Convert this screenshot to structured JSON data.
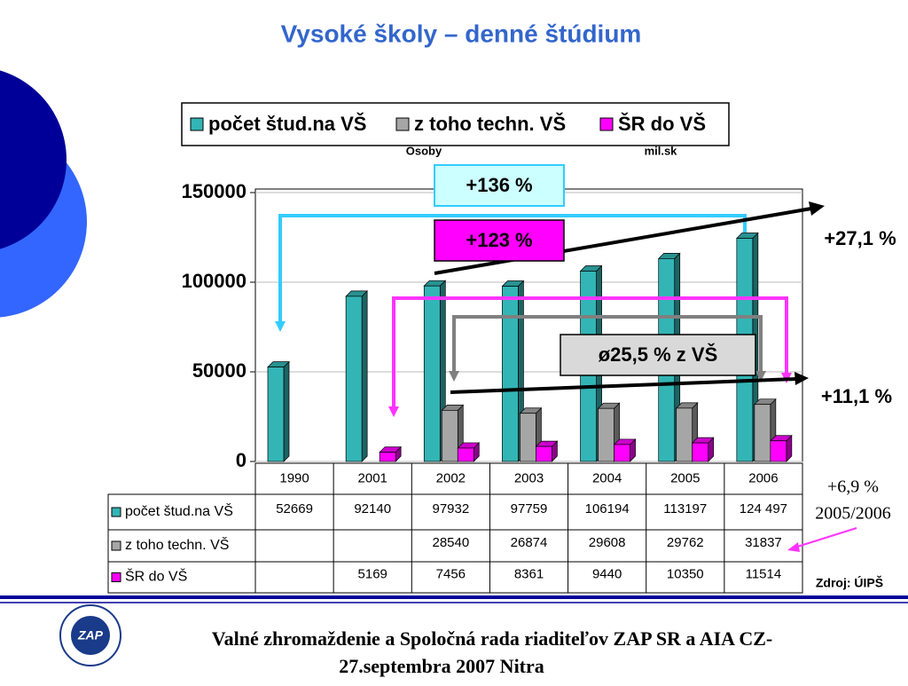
{
  "chart_data": {
    "type": "bar",
    "title": "Vysoké školy – denné štúdium",
    "categories": [
      "1990",
      "2001",
      "2002",
      "2003",
      "2004",
      "2005",
      "2006"
    ],
    "series": [
      {
        "name": "počet štud.na VŠ",
        "color": "#33b5b5",
        "values": [
          52669,
          92140,
          97932,
          97759,
          106194,
          113197,
          124497
        ],
        "value_labels": [
          "52669",
          "92140",
          "97932",
          "97759",
          "106194",
          "113197",
          "124 497"
        ]
      },
      {
        "name": "z toho techn. VŠ",
        "color": "#a6a6a6",
        "values": [
          null,
          null,
          28540,
          26874,
          29608,
          29762,
          31837
        ]
      },
      {
        "name": "ŠR do VŠ",
        "color": "#ff00ff",
        "values": [
          null,
          5169,
          7456,
          8361,
          9440,
          10350,
          11514
        ]
      }
    ],
    "ylim": [
      0,
      150000
    ],
    "yticks": [
      0,
      50000,
      100000,
      150000
    ],
    "grid": true,
    "units_left": "Osoby",
    "units_right": "mil.sk",
    "annotations": [
      "+136 %",
      "+123 %",
      "ø25,5 % z VŠ",
      "+27,1 %",
      "+11,1 %",
      "+6,9 %",
      "2005/2006"
    ],
    "source": "Zdroj: ÚIPŠ",
    "footer": [
      "Valné zhromaždenie a Spoločná rada riaditeľov ZAP SR a AIA CZ-",
      "27.septembra 2007 Nitra"
    ]
  }
}
